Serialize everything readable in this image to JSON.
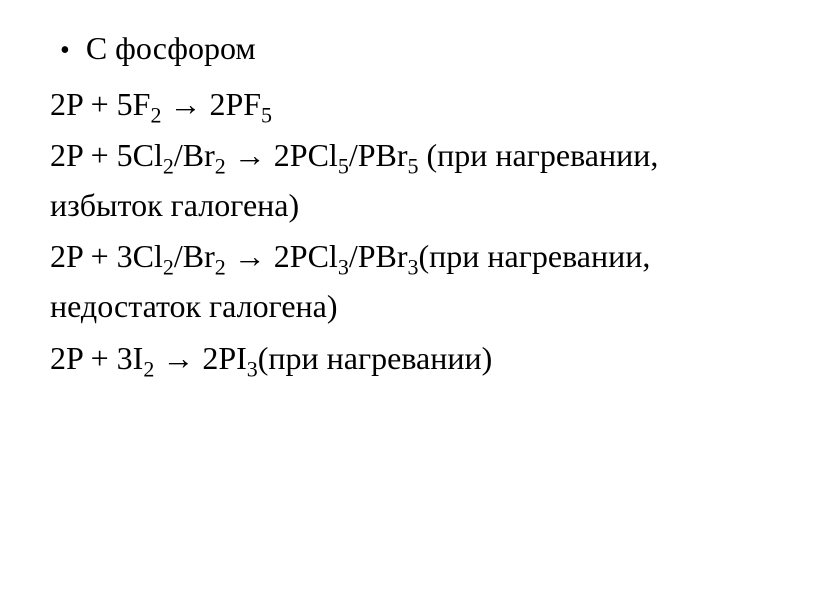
{
  "title": "С фосфором",
  "eq1": {
    "lhs_coef1": "2",
    "lhs_el1": "P",
    "plus": "  +  ",
    "lhs_coef2": "5",
    "lhs_el2": "F",
    "lhs_sub2": "2",
    "arrow": "  → ",
    "rhs_coef": "2",
    "rhs_el": "PF",
    "rhs_sub": "5"
  },
  "eq2": {
    "lhs_coef1": "2",
    "lhs_el1": "P",
    "plus": "  +  ",
    "lhs_coef2": "5",
    "lhs_el2a": "Cl",
    "lhs_sub2a": "2",
    "slash": "/",
    "lhs_el2b": "Br",
    "lhs_sub2b": "2",
    "arrow": " → ",
    "rhs_coef": "2",
    "rhs_el_a": "PCl",
    "rhs_sub_a": "5",
    "rhs_el_b": "PBr",
    "rhs_sub_b": "5",
    "note": " (при нагревании, избыток галогена)"
  },
  "eq3": {
    "lhs_coef1": "2",
    "lhs_el1": "P",
    "plus": "  +  ",
    "lhs_coef2": "3",
    "lhs_el2a": "Cl",
    "lhs_sub2a": "2",
    "slash": "/",
    "lhs_el2b": "Br",
    "lhs_sub2b": "2",
    "arrow": "  → ",
    "rhs_coef": "2",
    "rhs_el_a": "PCl",
    "rhs_sub_a": "3",
    "rhs_el_b": "PBr",
    "rhs_sub_b": "3",
    "note": "(при нагревании, недостаток галогена)"
  },
  "eq4": {
    "lhs_coef1": "2",
    "lhs_el1": "P",
    "plus": "  +  ",
    "lhs_coef2": "3",
    "lhs_el2": "I",
    "lhs_sub2": "2",
    "arrow": " → ",
    "rhs_coef": "2",
    "rhs_el": "PI",
    "rhs_sub": "3",
    "note": "(при нагревании)"
  }
}
